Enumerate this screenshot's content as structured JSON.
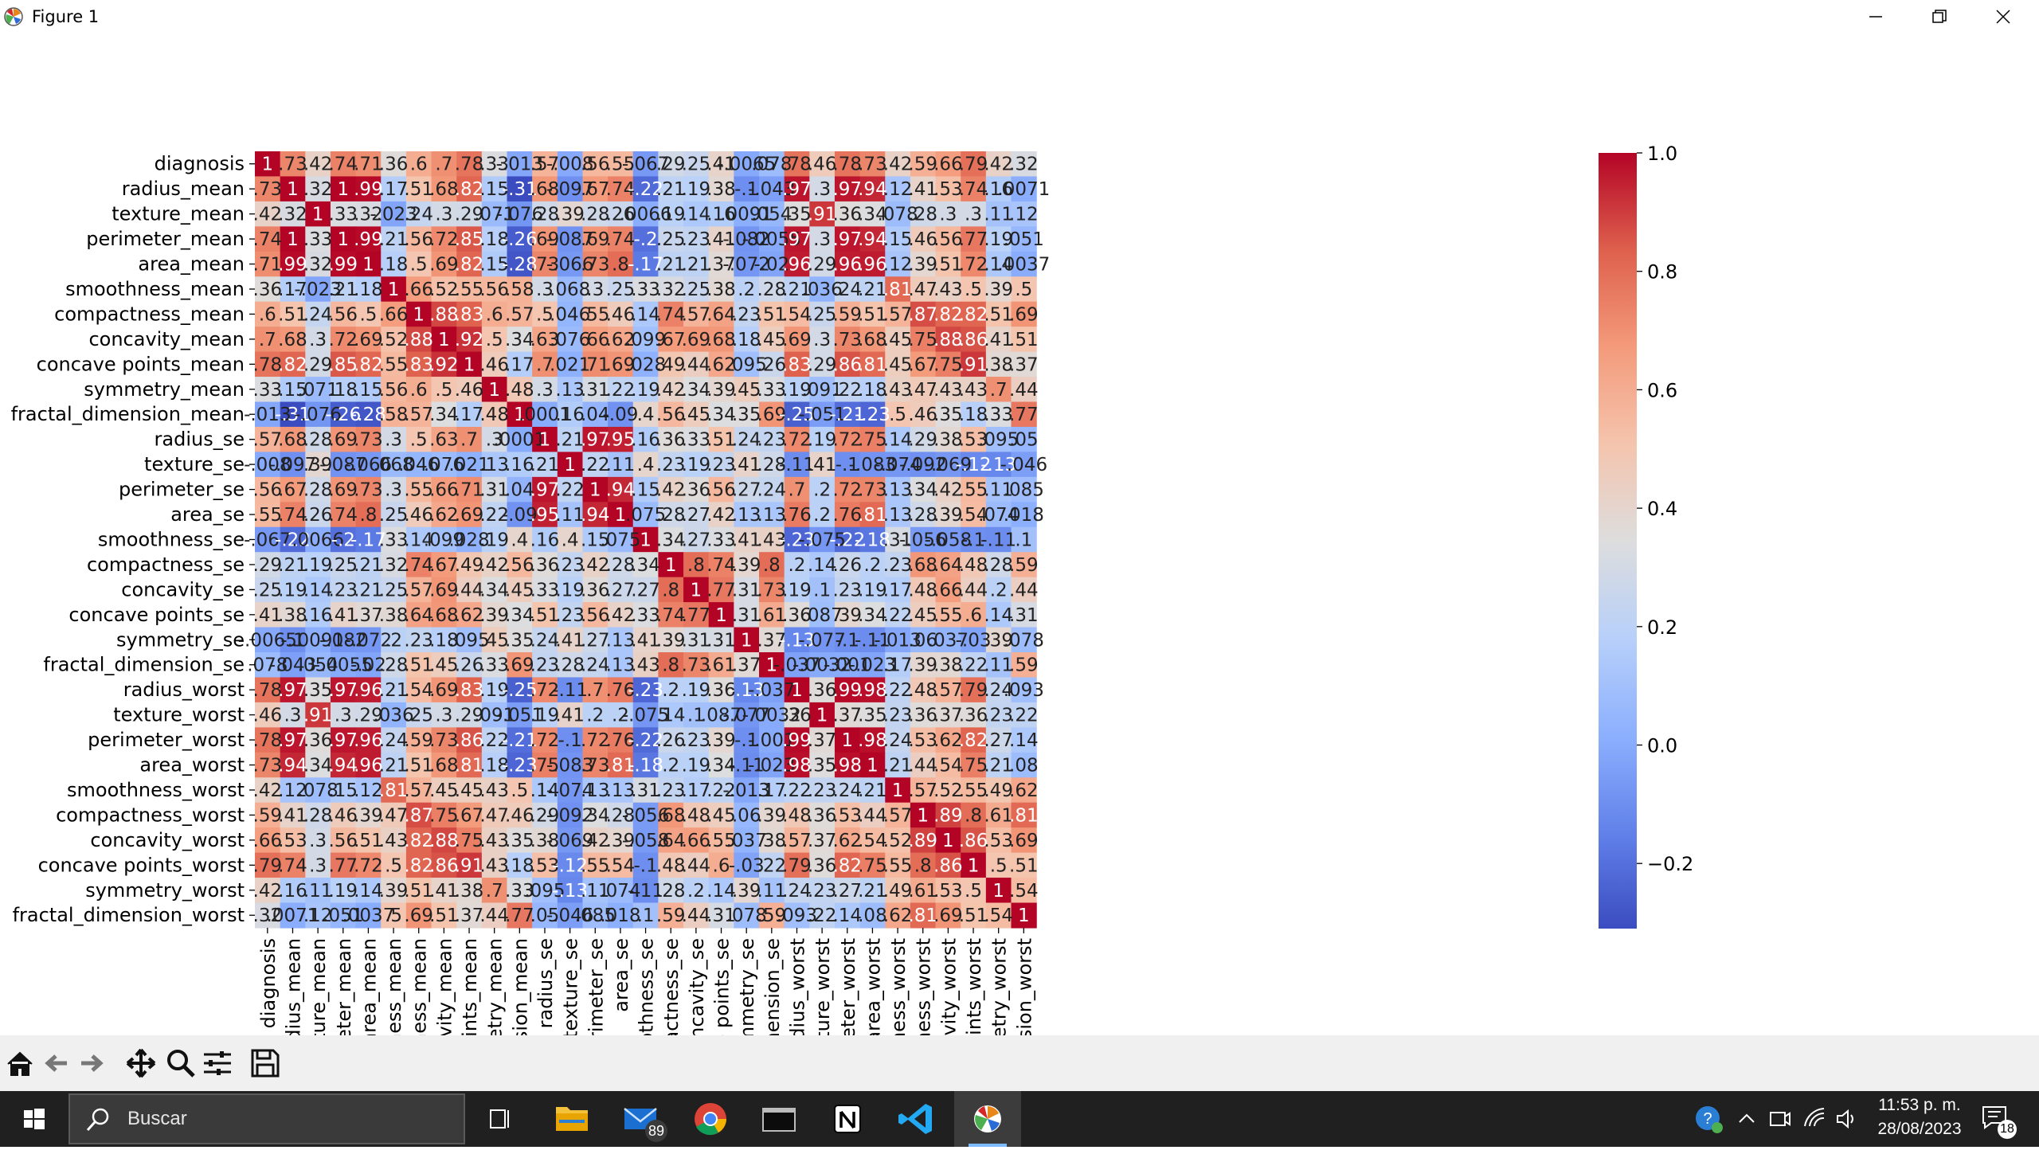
{
  "window": {
    "title": "Figure 1",
    "icon": "matplotlib-icon",
    "controls": [
      "minimize-icon",
      "restore-icon",
      "close-icon"
    ]
  },
  "chart_data": {
    "type": "heatmap",
    "row_labels": [
      "diagnosis",
      "radius_mean",
      "texture_mean",
      "perimeter_mean",
      "area_mean",
      "smoothness_mean",
      "compactness_mean",
      "concavity_mean",
      "concave points_mean",
      "symmetry_mean",
      "fractal_dimension_mean",
      "radius_se",
      "texture_se",
      "perimeter_se",
      "area_se",
      "smoothness_se",
      "compactness_se",
      "concavity_se",
      "concave points_se",
      "symmetry_se",
      "fractal_dimension_se",
      "radius_worst",
      "texture_worst",
      "perimeter_worst",
      "area_worst",
      "smoothness_worst",
      "compactness_worst",
      "concavity_worst",
      "concave points_worst",
      "symmetry_worst",
      "fractal_dimension_worst"
    ],
    "col_labels": [
      "diagnosis",
      "radius_mean",
      "texture_mean",
      "perimeter_mean",
      "area_mean",
      "smoothness_mean",
      "compactness_mean",
      "concavity_mean",
      "concave points_mean",
      "symmetry_mean",
      "fractal_dimension_mean",
      "radius_se",
      "texture_se",
      "perimeter_se",
      "area_se",
      "smoothness_se",
      "compactness_se",
      "concavity_se",
      "concave points_se",
      "symmetry_se",
      "fractal_dimension_se",
      "radius_worst",
      "texture_worst",
      "perimeter_worst",
      "area_worst",
      "smoothness_worst",
      "compactness_worst",
      "concavity_worst",
      "concave points_worst",
      "symmetry_worst",
      "fractal_dimension_worst"
    ],
    "values": [
      [
        1,
        0.73,
        0.42,
        0.74,
        0.71,
        0.36,
        0.6,
        0.7,
        0.78,
        0.33,
        -0.013,
        0.57,
        -0.008,
        0.56,
        0.55,
        -0.067,
        0.29,
        0.25,
        0.41,
        -0.0065,
        0.078,
        0.78,
        0.46,
        0.78,
        0.73,
        0.42,
        0.59,
        0.66,
        0.79,
        0.42,
        0.32
      ],
      [
        0.73,
        1,
        0.32,
        1,
        0.99,
        0.17,
        0.51,
        0.68,
        0.82,
        0.15,
        -0.31,
        0.68,
        -0.097,
        0.67,
        0.74,
        -0.22,
        0.21,
        0.19,
        0.38,
        -0.1,
        -0.043,
        0.97,
        0.3,
        0.97,
        0.94,
        0.12,
        0.41,
        0.53,
        0.74,
        0.16,
        0.0071
      ],
      [
        0.42,
        0.32,
        1,
        0.33,
        0.32,
        -0.023,
        0.24,
        0.3,
        0.29,
        0.071,
        -0.076,
        0.28,
        0.39,
        0.28,
        0.26,
        0.0066,
        0.19,
        0.14,
        0.16,
        0.0091,
        0.054,
        0.35,
        0.91,
        0.36,
        0.34,
        0.078,
        0.28,
        0.3,
        0.3,
        0.11,
        0.12
      ],
      [
        0.74,
        1,
        0.33,
        1,
        0.99,
        0.21,
        0.56,
        0.72,
        0.85,
        0.18,
        -0.26,
        0.69,
        -0.087,
        0.69,
        0.74,
        -0.2,
        0.25,
        0.23,
        0.41,
        -0.082,
        -0.0055,
        0.97,
        0.3,
        0.97,
        0.94,
        0.15,
        0.46,
        0.56,
        0.77,
        0.19,
        0.051
      ],
      [
        0.71,
        0.99,
        0.32,
        0.99,
        1,
        0.18,
        0.5,
        0.69,
        0.82,
        0.15,
        -0.28,
        0.73,
        -0.066,
        0.73,
        0.8,
        -0.17,
        0.21,
        0.21,
        0.37,
        -0.072,
        -0.02,
        0.96,
        0.29,
        0.96,
        0.96,
        0.12,
        0.39,
        0.51,
        0.72,
        0.14,
        0.0037
      ],
      [
        0.36,
        0.17,
        -0.023,
        0.21,
        0.18,
        1,
        0.66,
        0.52,
        0.55,
        0.56,
        0.58,
        0.3,
        0.068,
        0.3,
        0.25,
        0.33,
        0.32,
        0.25,
        0.38,
        0.2,
        0.28,
        0.21,
        0.036,
        0.24,
        0.21,
        0.81,
        0.47,
        0.43,
        0.5,
        0.39,
        0.5
      ],
      [
        0.6,
        0.51,
        0.24,
        0.56,
        0.5,
        0.66,
        1,
        0.88,
        0.83,
        0.6,
        0.57,
        0.5,
        0.046,
        0.55,
        0.46,
        0.14,
        0.74,
        0.57,
        0.64,
        0.23,
        0.51,
        0.54,
        0.25,
        0.59,
        0.51,
        0.57,
        0.87,
        0.82,
        0.82,
        0.51,
        0.69
      ],
      [
        0.7,
        0.68,
        0.3,
        0.72,
        0.69,
        0.52,
        0.88,
        1,
        0.92,
        0.5,
        0.34,
        0.63,
        0.076,
        0.66,
        0.62,
        0.099,
        0.67,
        0.69,
        0.68,
        0.18,
        0.45,
        0.69,
        0.3,
        0.73,
        0.68,
        0.45,
        0.75,
        0.88,
        0.86,
        0.41,
        0.51
      ],
      [
        0.78,
        0.82,
        0.29,
        0.85,
        0.82,
        0.55,
        0.83,
        0.92,
        1,
        0.46,
        0.17,
        0.7,
        0.021,
        0.71,
        0.69,
        0.028,
        0.49,
        0.44,
        0.62,
        0.095,
        0.26,
        0.83,
        0.29,
        0.86,
        0.81,
        0.45,
        0.67,
        0.75,
        0.91,
        0.38,
        0.37
      ],
      [
        0.33,
        0.15,
        0.071,
        0.18,
        0.15,
        0.56,
        0.6,
        0.5,
        0.46,
        1,
        0.48,
        0.3,
        0.13,
        0.31,
        0.22,
        0.19,
        0.42,
        0.34,
        0.39,
        0.45,
        0.33,
        0.19,
        0.091,
        0.22,
        0.18,
        0.43,
        0.47,
        0.43,
        0.43,
        0.7,
        0.44
      ],
      [
        -0.013,
        -0.31,
        -0.076,
        -0.26,
        -0.28,
        0.58,
        0.57,
        0.34,
        0.17,
        0.48,
        1,
        0.0001,
        0.16,
        0.04,
        -0.09,
        0.4,
        0.56,
        0.45,
        0.34,
        0.35,
        0.69,
        -0.25,
        -0.051,
        -0.21,
        -0.23,
        0.5,
        0.46,
        0.35,
        0.18,
        0.33,
        0.77
      ],
      [
        0.57,
        0.68,
        0.28,
        0.69,
        0.73,
        0.3,
        0.5,
        0.63,
        0.7,
        0.3,
        0.0001,
        1,
        0.21,
        0.97,
        0.95,
        0.16,
        0.36,
        0.33,
        0.51,
        0.24,
        0.23,
        0.72,
        0.19,
        0.72,
        0.75,
        0.14,
        0.29,
        0.38,
        0.53,
        0.095,
        0.05
      ],
      [
        -0.008,
        -0.097,
        0.39,
        -0.087,
        -0.066,
        0.068,
        0.046,
        0.076,
        0.021,
        0.13,
        0.16,
        0.21,
        1,
        0.22,
        0.11,
        0.4,
        0.23,
        0.19,
        0.23,
        0.41,
        0.28,
        -0.11,
        0.41,
        -0.1,
        -0.083,
        -0.074,
        -0.092,
        -0.069,
        -0.12,
        -0.13,
        -0.046
      ],
      [
        0.56,
        0.67,
        0.28,
        0.69,
        0.73,
        0.3,
        0.55,
        0.66,
        0.71,
        0.31,
        0.04,
        0.97,
        0.22,
        1,
        0.94,
        0.15,
        0.42,
        0.36,
        0.56,
        0.27,
        0.24,
        0.7,
        0.2,
        0.72,
        0.73,
        0.13,
        0.34,
        0.42,
        0.55,
        0.11,
        0.085
      ],
      [
        0.55,
        0.74,
        0.26,
        0.74,
        0.8,
        0.25,
        0.46,
        0.62,
        0.69,
        0.22,
        -0.09,
        0.95,
        0.11,
        0.94,
        1,
        0.075,
        0.28,
        0.27,
        0.42,
        0.13,
        0.13,
        0.76,
        0.2,
        0.76,
        0.81,
        0.13,
        0.28,
        0.39,
        0.54,
        0.074,
        0.018
      ],
      [
        -0.067,
        -0.22,
        0.0066,
        -0.2,
        -0.17,
        0.33,
        0.14,
        0.099,
        0.028,
        0.19,
        0.4,
        0.16,
        0.4,
        0.15,
        0.075,
        1,
        0.34,
        0.27,
        0.33,
        0.41,
        0.43,
        -0.23,
        -0.075,
        -0.22,
        -0.18,
        0.31,
        -0.056,
        -0.058,
        -0.1,
        -0.11,
        0.1
      ],
      [
        0.29,
        0.21,
        0.19,
        0.25,
        0.21,
        0.32,
        0.74,
        0.67,
        0.49,
        0.42,
        0.56,
        0.36,
        0.23,
        0.42,
        0.28,
        0.34,
        1,
        0.8,
        0.74,
        0.39,
        0.8,
        0.2,
        0.14,
        0.26,
        0.2,
        0.23,
        0.68,
        0.64,
        0.48,
        0.28,
        0.59
      ],
      [
        0.25,
        0.19,
        0.14,
        0.23,
        0.21,
        0.25,
        0.57,
        0.69,
        0.44,
        0.34,
        0.45,
        0.33,
        0.19,
        0.36,
        0.27,
        0.27,
        0.8,
        1,
        0.77,
        0.31,
        0.73,
        0.19,
        0.1,
        0.23,
        0.19,
        0.17,
        0.48,
        0.66,
        0.44,
        0.2,
        0.44
      ],
      [
        0.41,
        0.38,
        0.16,
        0.41,
        0.37,
        0.38,
        0.64,
        0.68,
        0.62,
        0.39,
        0.34,
        0.51,
        0.23,
        0.56,
        0.42,
        0.33,
        0.74,
        0.77,
        1,
        0.31,
        0.61,
        0.36,
        0.087,
        0.39,
        0.34,
        0.22,
        0.45,
        0.55,
        0.6,
        0.14,
        0.31
      ],
      [
        -0.0065,
        -0.1,
        0.0091,
        -0.082,
        -0.072,
        0.2,
        0.23,
        0.18,
        0.095,
        0.45,
        0.35,
        0.24,
        0.41,
        0.27,
        0.13,
        0.41,
        0.39,
        0.31,
        0.31,
        1,
        0.37,
        -0.13,
        -0.077,
        -0.1,
        -0.11,
        -0.013,
        0.06,
        0.037,
        -0.03,
        0.39,
        0.078
      ],
      [
        0.078,
        -0.043,
        0.054,
        -0.0055,
        -0.02,
        0.28,
        0.51,
        0.45,
        0.26,
        0.33,
        0.69,
        0.23,
        0.28,
        0.24,
        0.13,
        0.43,
        0.8,
        0.73,
        0.61,
        0.37,
        1,
        -0.037,
        -0.0032,
        -0.001,
        -0.023,
        0.17,
        0.39,
        0.38,
        0.22,
        0.11,
        0.59
      ],
      [
        0.78,
        0.97,
        0.35,
        0.97,
        0.96,
        0.21,
        0.54,
        0.69,
        0.83,
        0.19,
        -0.25,
        0.72,
        -0.11,
        0.7,
        0.76,
        -0.23,
        0.2,
        0.19,
        0.36,
        -0.13,
        -0.037,
        1,
        0.36,
        0.99,
        0.98,
        0.22,
        0.48,
        0.57,
        0.79,
        0.24,
        0.093
      ],
      [
        0.46,
        0.3,
        0.91,
        0.3,
        0.29,
        0.036,
        0.25,
        0.3,
        0.29,
        0.091,
        -0.051,
        0.19,
        0.41,
        0.2,
        0.2,
        -0.075,
        0.14,
        0.1,
        0.087,
        -0.077,
        -0.0032,
        0.36,
        1,
        0.37,
        0.35,
        0.23,
        0.36,
        0.37,
        0.36,
        0.23,
        0.22
      ],
      [
        0.78,
        0.97,
        0.36,
        0.97,
        0.96,
        0.24,
        0.59,
        0.73,
        0.86,
        0.22,
        -0.21,
        0.72,
        -0.1,
        0.72,
        0.76,
        -0.22,
        0.26,
        0.23,
        0.39,
        -0.1,
        -0.001,
        0.99,
        0.37,
        1,
        0.98,
        0.24,
        0.53,
        0.62,
        0.82,
        0.27,
        0.14
      ],
      [
        0.73,
        0.94,
        0.34,
        0.94,
        0.96,
        0.21,
        0.51,
        0.68,
        0.81,
        0.18,
        -0.23,
        0.75,
        -0.083,
        0.73,
        0.81,
        -0.18,
        0.2,
        0.19,
        0.34,
        -0.11,
        -0.023,
        0.98,
        0.35,
        0.98,
        1,
        0.21,
        0.44,
        0.54,
        0.75,
        0.21,
        0.08
      ],
      [
        0.42,
        0.12,
        0.078,
        0.15,
        0.12,
        0.81,
        0.57,
        0.45,
        0.45,
        0.43,
        0.5,
        0.14,
        -0.074,
        0.13,
        0.13,
        0.31,
        0.23,
        0.17,
        0.22,
        -0.013,
        0.17,
        0.22,
        0.23,
        0.24,
        0.21,
        1,
        0.57,
        0.52,
        0.55,
        0.49,
        0.62
      ],
      [
        0.59,
        0.41,
        0.28,
        0.46,
        0.39,
        0.47,
        0.87,
        0.75,
        0.67,
        0.47,
        0.46,
        0.29,
        -0.092,
        0.34,
        0.28,
        -0.056,
        0.68,
        0.48,
        0.45,
        0.06,
        0.39,
        0.48,
        0.36,
        0.53,
        0.44,
        0.57,
        1,
        0.89,
        0.8,
        0.61,
        0.81
      ],
      [
        0.66,
        0.53,
        0.3,
        0.56,
        0.51,
        0.43,
        0.82,
        0.88,
        0.75,
        0.43,
        0.35,
        0.38,
        -0.069,
        0.42,
        0.39,
        -0.058,
        0.64,
        0.66,
        0.55,
        0.037,
        0.38,
        0.57,
        0.37,
        0.62,
        0.54,
        0.52,
        0.89,
        1,
        0.86,
        0.53,
        0.69
      ],
      [
        0.79,
        0.74,
        0.3,
        0.77,
        0.72,
        0.5,
        0.82,
        0.86,
        0.91,
        0.43,
        0.18,
        0.53,
        -0.12,
        0.55,
        0.54,
        -0.1,
        0.48,
        0.44,
        0.6,
        -0.03,
        0.22,
        0.79,
        0.36,
        0.82,
        0.75,
        0.55,
        0.8,
        0.86,
        1,
        0.5,
        0.51
      ],
      [
        0.42,
        0.16,
        0.11,
        0.19,
        0.14,
        0.39,
        0.51,
        0.41,
        0.38,
        0.7,
        0.33,
        0.095,
        -0.13,
        0.11,
        0.074,
        -0.11,
        0.28,
        0.2,
        0.14,
        0.39,
        0.11,
        0.24,
        0.23,
        0.27,
        0.21,
        0.49,
        0.61,
        0.53,
        0.5,
        1,
        0.54
      ],
      [
        0.32,
        0.0071,
        0.12,
        0.051,
        0.0037,
        0.5,
        0.69,
        0.51,
        0.37,
        0.44,
        0.77,
        0.05,
        -0.046,
        0.085,
        0.018,
        0.1,
        0.59,
        0.44,
        0.31,
        0.078,
        0.59,
        0.093,
        0.22,
        0.14,
        0.08,
        0.62,
        0.81,
        0.69,
        0.51,
        0.54,
        1
      ]
    ],
    "colorbar": {
      "min": -0.31,
      "max": 1.0,
      "ticks": [
        1.0,
        0.8,
        0.6,
        0.4,
        0.2,
        0.0,
        -0.2
      ],
      "tick_labels": [
        "1.0",
        "0.8",
        "0.6",
        "0.4",
        "0.2",
        "0.0",
        "−0.2"
      ],
      "colormap": "coolwarm"
    },
    "annotations": true,
    "grid": false
  },
  "toolbar": {
    "buttons": [
      "home-icon",
      "back-icon",
      "forward-icon",
      "pan-icon",
      "zoom-icon",
      "configure-subplots-icon",
      "save-icon"
    ]
  },
  "taskbar": {
    "search_placeholder": "Buscar",
    "apps": [
      "task-view-icon",
      "file-explorer-icon",
      "mail-icon",
      "chrome-icon",
      "terminal-icon",
      "notion-icon",
      "vscode-icon",
      "matplotlib-icon"
    ],
    "mail_badge": "89",
    "time": "11:53 p. m.",
    "date": "28/08/2023",
    "notification_count": "18"
  },
  "colors": {
    "taskbar_bg": "#202020",
    "toolbar_bg": "#f0f0f0",
    "active_app": "#3c3c3c"
  }
}
